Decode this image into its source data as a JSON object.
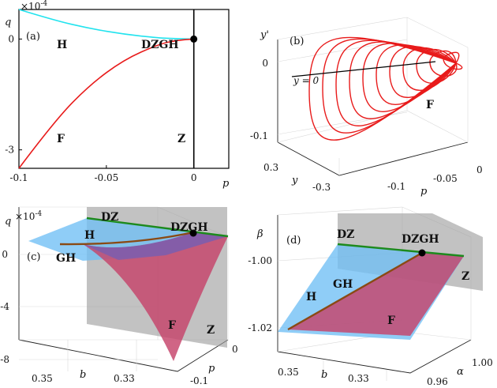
{
  "chart_data": [
    {
      "panel_label": "(a)",
      "type": "line",
      "xlabel": "p",
      "ylabel": "q",
      "ylabel_exponent": "×10",
      "exponent_power": "-4",
      "xlim": [
        -0.1,
        0.02
      ],
      "ylim": [
        -3.5,
        0.8
      ],
      "xticks": [
        -0.1,
        -0.05,
        0
      ],
      "xtick_labels": [
        "-0.1",
        "-0.05",
        "0"
      ],
      "yticks": [
        0,
        -3
      ],
      "ytick_labels": [
        "0",
        "-3"
      ],
      "series": [
        {
          "name": "H",
          "color": "#22e3ee",
          "x": [
            -0.1,
            -0.08,
            -0.06,
            -0.04,
            -0.02,
            -0.01,
            0
          ],
          "y": [
            0.8,
            0.51,
            0.29,
            0.13,
            0.03,
            0.01,
            0
          ]
        },
        {
          "name": "F",
          "color": "#e81b1b",
          "x": [
            -0.1,
            -0.08,
            -0.06,
            -0.04,
            -0.02,
            -0.01,
            0
          ],
          "y": [
            -3.5,
            -2.24,
            -1.26,
            -0.56,
            -0.14,
            -0.035,
            0
          ]
        },
        {
          "name": "Z",
          "color": "#000000",
          "x": [
            0,
            0
          ],
          "y": [
            -3.5,
            0.8
          ]
        }
      ],
      "point": {
        "name": "DZGH",
        "x": 0,
        "y": 0
      },
      "annotations": [
        "H",
        "F",
        "Z",
        "DZGH"
      ]
    },
    {
      "panel_label": "(b)",
      "type": "line",
      "xlabel": "p",
      "ylabel": "y'",
      "zlabel": "y",
      "p_ticks": [
        "-0.1",
        "-0.05",
        "0"
      ],
      "y_ticks": [
        "0.3",
        "-0.3"
      ],
      "yprime_ticks": [
        "0",
        "-0.1"
      ],
      "curve_label": "F",
      "line_label": "y = 0",
      "series": [
        {
          "name": "F orbits",
          "color": "#e81b1b",
          "p": [
            -0.11,
            -0.1,
            -0.09,
            -0.08,
            -0.07,
            -0.06,
            -0.05,
            -0.04,
            -0.03,
            -0.02,
            -0.01
          ]
        },
        {
          "name": "y = 0",
          "color": "#000000"
        }
      ]
    },
    {
      "panel_label": "(c)",
      "type": "surface",
      "xlabel": "b",
      "ylabel": "p",
      "zlabel": "q",
      "zlabel_exponent": "×10",
      "exponent_power": "-4",
      "b_ticks": [
        "0.35",
        "0.33"
      ],
      "p_ticks": [
        "0",
        "-0.1"
      ],
      "q_ticks": [
        "0",
        "-4",
        "-8"
      ],
      "surfaces": [
        {
          "name": "H",
          "color": "#6fbff5"
        },
        {
          "name": "F",
          "color": "#c6436a"
        },
        {
          "name": "Z",
          "color": "#9c9c9c"
        }
      ],
      "curves": [
        {
          "name": "DZ",
          "color": "#1d8a1d"
        },
        {
          "name": "GH",
          "color": "#8a4a14"
        }
      ],
      "point": {
        "name": "DZGH"
      }
    },
    {
      "panel_label": "(d)",
      "type": "surface",
      "xlabel": "b",
      "ylabel": "α",
      "zlabel": "β",
      "b_ticks": [
        "0.35",
        "0.33"
      ],
      "alpha_ticks": [
        "0.96",
        "1.00"
      ],
      "beta_ticks": [
        "-1.00",
        "-1.02"
      ],
      "surfaces": [
        {
          "name": "H",
          "color": "#6fbff5"
        },
        {
          "name": "F",
          "color": "#c6436a"
        },
        {
          "name": "Z",
          "color": "#9c9c9c"
        }
      ],
      "curves": [
        {
          "name": "DZ",
          "color": "#1d8a1d"
        },
        {
          "name": "GH",
          "color": "#8a4a14"
        }
      ],
      "point": {
        "name": "DZGH"
      }
    }
  ]
}
